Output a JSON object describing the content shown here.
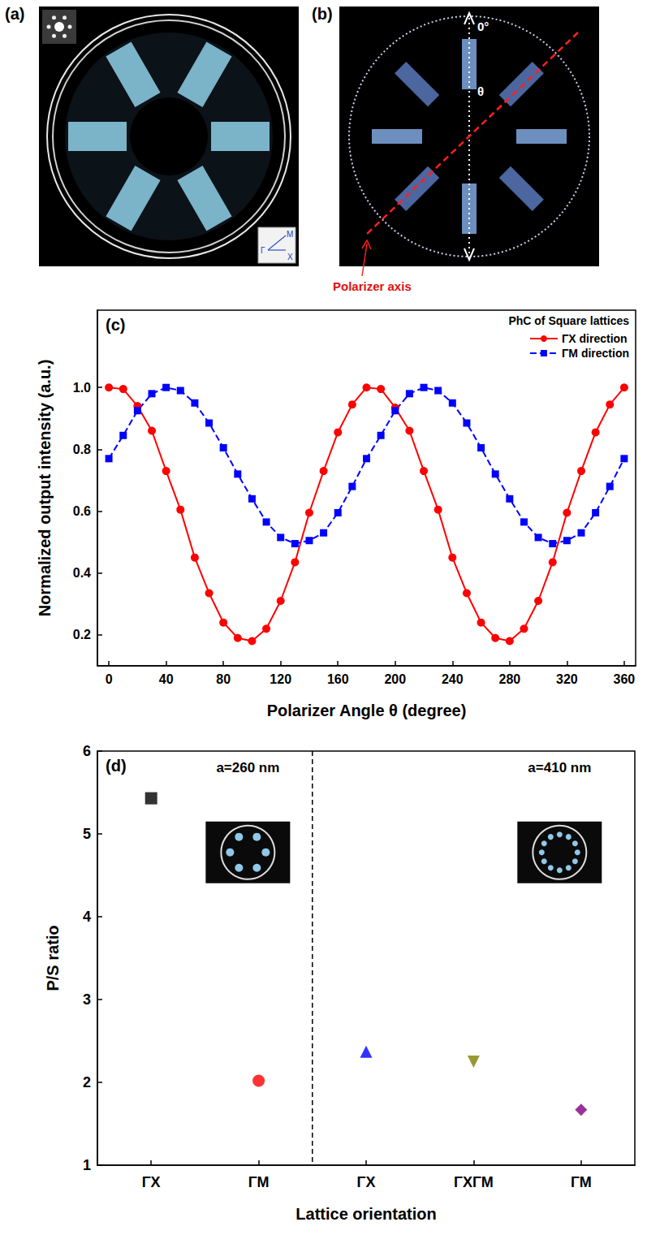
{
  "images": {
    "a": {
      "label": "(a)",
      "inset_labels": [
        "Γ",
        "M",
        "X"
      ]
    },
    "b": {
      "label": "(b)",
      "reference_angle": "0°",
      "angle_symbol": "θ",
      "polarizer_label": "Polarizer axis"
    }
  },
  "chart_data": [
    {
      "type": "line",
      "label": "(c)",
      "legend_title": "PhC of Square lattices",
      "x_label": "Polarizer Angle θ (degree)",
      "y_label": "Normalized output intensity (a.u.)",
      "x": [
        0,
        10,
        20,
        30,
        40,
        50,
        60,
        70,
        80,
        90,
        100,
        110,
        120,
        130,
        140,
        150,
        160,
        170,
        180,
        190,
        200,
        210,
        220,
        230,
        240,
        250,
        260,
        270,
        280,
        290,
        300,
        310,
        320,
        330,
        340,
        350,
        360
      ],
      "series": [
        {
          "name": "ΓX direction",
          "color": "#ff0000",
          "marker": "circle",
          "line_style": "solid",
          "values": [
            1.0,
            0.995,
            0.94,
            0.86,
            0.73,
            0.605,
            0.45,
            0.335,
            0.24,
            0.19,
            0.18,
            0.22,
            0.31,
            0.435,
            0.595,
            0.73,
            0.855,
            0.945,
            1.0,
            0.995,
            0.935,
            0.86,
            0.73,
            0.605,
            0.45,
            0.335,
            0.24,
            0.19,
            0.18,
            0.22,
            0.31,
            0.435,
            0.595,
            0.73,
            0.855,
            0.945,
            1.0
          ]
        },
        {
          "name": "ΓM direction",
          "color": "#0000ff",
          "marker": "square",
          "line_style": "dashed",
          "values": [
            0.77,
            0.845,
            0.925,
            0.98,
            1.0,
            0.99,
            0.95,
            0.885,
            0.805,
            0.72,
            0.64,
            0.565,
            0.515,
            0.495,
            0.505,
            0.53,
            0.595,
            0.68,
            0.77,
            0.845,
            0.925,
            0.98,
            1.0,
            0.99,
            0.95,
            0.885,
            0.805,
            0.72,
            0.64,
            0.565,
            0.515,
            0.495,
            0.505,
            0.53,
            0.595,
            0.68,
            0.77
          ]
        }
      ],
      "xlim": [
        -8,
        368
      ],
      "xticks": [
        0,
        40,
        80,
        120,
        160,
        200,
        240,
        280,
        320,
        360
      ],
      "ylim": [
        0.1,
        1.25
      ],
      "yticks": [
        0.2,
        0.4,
        0.6,
        0.8,
        {
          "value": 1,
          "label": "1.0"
        }
      ],
      "grid": false,
      "legend": "top-right"
    },
    {
      "type": "scatter",
      "label": "(d)",
      "x_label": "Lattice orientation",
      "y_label": "P/S ratio",
      "categories": [
        "ΓX",
        "ΓM",
        "ΓX",
        "ΓXΓM",
        "ΓM"
      ],
      "annotations": [
        "a=260 nm",
        "a=410 nm"
      ],
      "series": [
        {
          "color": "#000000",
          "marker": "square",
          "values": [
            5.43,
            null,
            null,
            null,
            null
          ]
        },
        {
          "color": "#ff0000",
          "marker": "circle",
          "values": [
            null,
            2.02,
            null,
            null,
            null
          ]
        },
        {
          "color": "#0000ff",
          "marker": "triangle",
          "values": [
            null,
            null,
            2.37,
            null,
            null
          ]
        },
        {
          "color": "#808000",
          "marker": "inverted triangle",
          "values": [
            null,
            null,
            null,
            2.25,
            null
          ]
        },
        {
          "color": "#800080",
          "marker": "diamond",
          "values": [
            null,
            null,
            null,
            null,
            1.67
          ]
        }
      ],
      "ylim": [
        1,
        6
      ],
      "yticks": [
        1,
        2,
        3,
        4,
        5,
        6
      ],
      "grid": false
    }
  ]
}
